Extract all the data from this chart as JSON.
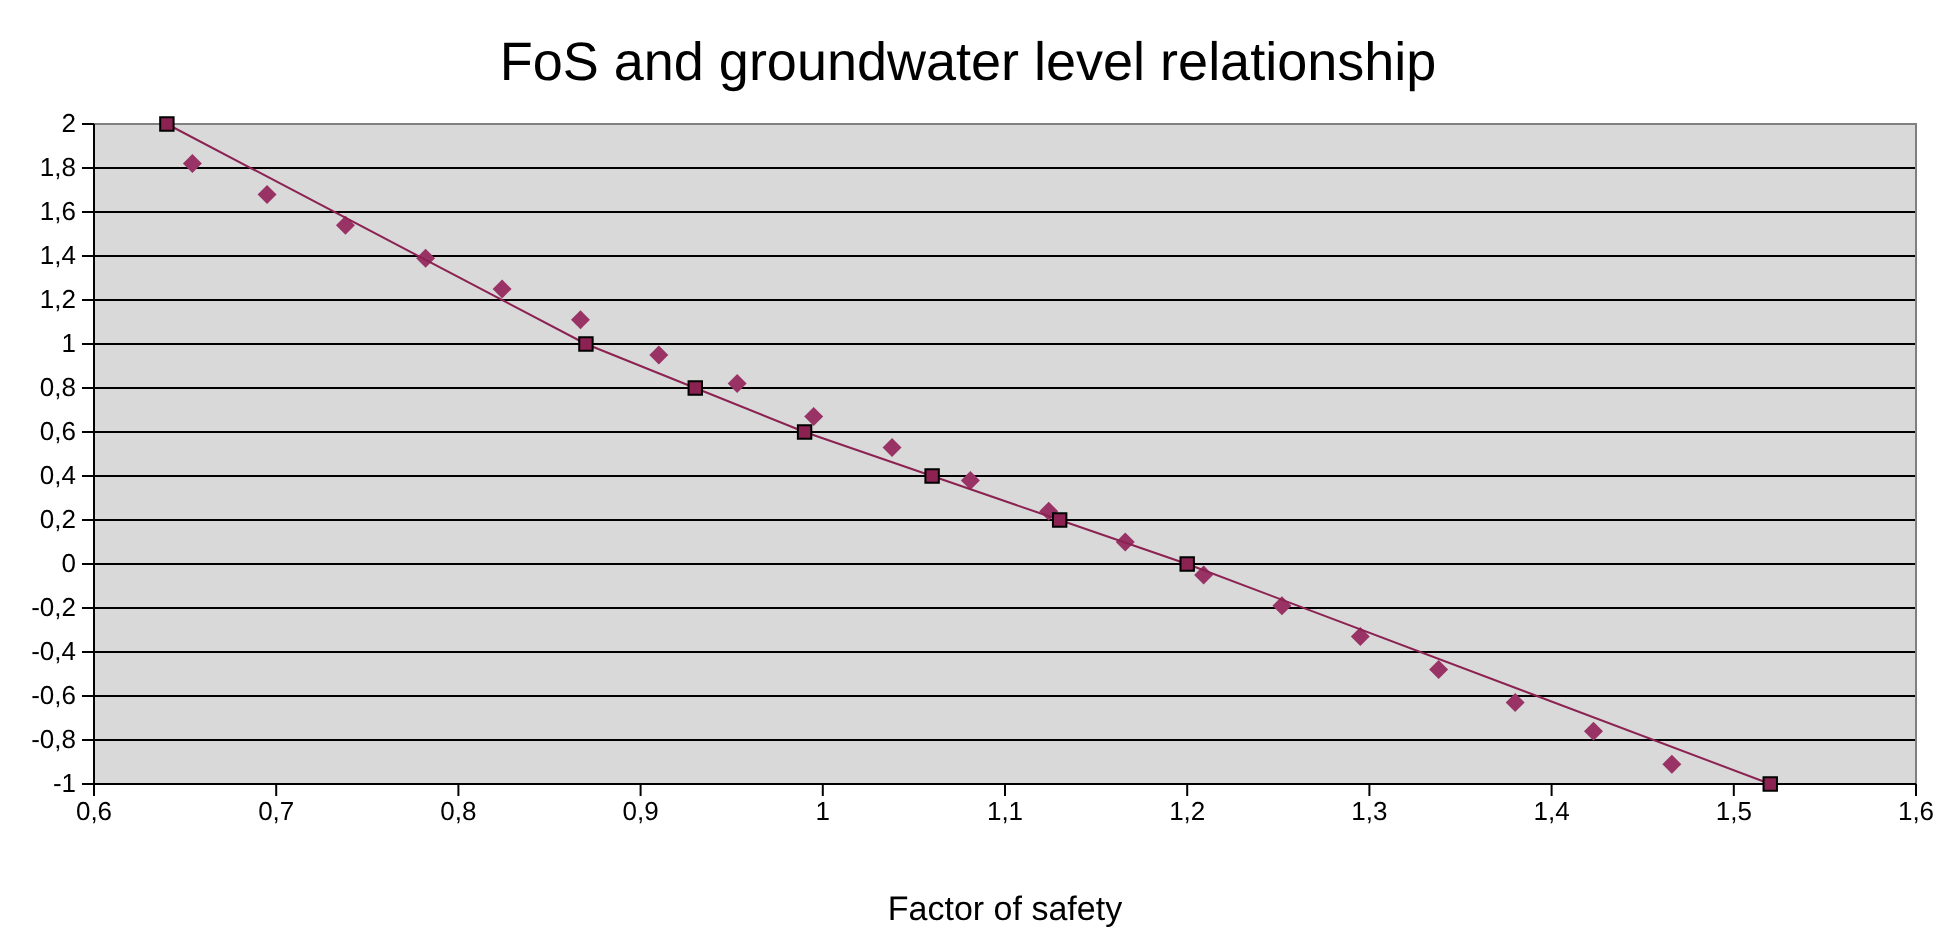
{
  "chart_data": {
    "type": "line",
    "title": "FoS and groundwater level relationship",
    "xlabel": "Factor of safety",
    "xlim": [
      0.6,
      1.6
    ],
    "xticks": [
      {
        "value": 0.6,
        "label": "0,6"
      },
      {
        "value": 0.7,
        "label": "0,7"
      },
      {
        "value": 0.8,
        "label": "0,8"
      },
      {
        "value": 0.9,
        "label": "0,9"
      },
      1,
      {
        "value": 1.1,
        "label": "1,1"
      },
      {
        "value": 1.2,
        "label": "1,2"
      },
      {
        "value": 1.3,
        "label": "1,3"
      },
      {
        "value": 1.4,
        "label": "1,4"
      },
      {
        "value": 1.5,
        "label": "1,5"
      },
      {
        "value": 1.6,
        "label": "1,6"
      }
    ],
    "ylim": [
      -1,
      2
    ],
    "yticks": [
      -1,
      {
        "value": -0.8,
        "label": "-0,8"
      },
      {
        "value": -0.6,
        "label": "-0,6"
      },
      {
        "value": -0.4,
        "label": "-0,4"
      },
      {
        "value": -0.2,
        "label": "-0,2"
      },
      0,
      {
        "value": 0.2,
        "label": "0,2"
      },
      {
        "value": 0.4,
        "label": "0,4"
      },
      {
        "value": 0.6,
        "label": "0,6"
      },
      {
        "value": 0.8,
        "label": "0,8"
      },
      1,
      {
        "value": 1.2,
        "label": "1,2"
      },
      {
        "value": 1.4,
        "label": "1,4"
      },
      {
        "value": 1.6,
        "label": "1,6"
      },
      {
        "value": 1.8,
        "label": "1,8"
      },
      2
    ],
    "grid": "y",
    "series": [
      {
        "type": "scatter",
        "marker": "diamond",
        "color": "#993366",
        "x": [
          0.654,
          0.695,
          0.738,
          0.782,
          0.824,
          0.867,
          0.91,
          0.953,
          0.995,
          1.038,
          1.081,
          1.124,
          1.166,
          1.209,
          1.252,
          1.295,
          1.338,
          1.38,
          1.423,
          1.466
        ],
        "values": [
          1.82,
          1.68,
          1.54,
          1.39,
          1.25,
          1.11,
          0.95,
          0.82,
          0.67,
          0.53,
          0.38,
          0.24,
          0.1,
          -0.05,
          -0.19,
          -0.33,
          -0.48,
          -0.63,
          -0.76,
          -0.91
        ]
      },
      {
        "marker": "square",
        "line_style": "solid",
        "color": "#8b2252",
        "x": [
          0.64,
          0.87,
          0.93,
          0.99,
          1.06,
          1.13,
          1.2,
          1.52
        ],
        "values": [
          2,
          1,
          0.8,
          0.6,
          0.4,
          0.2,
          0,
          -1
        ]
      }
    ]
  }
}
